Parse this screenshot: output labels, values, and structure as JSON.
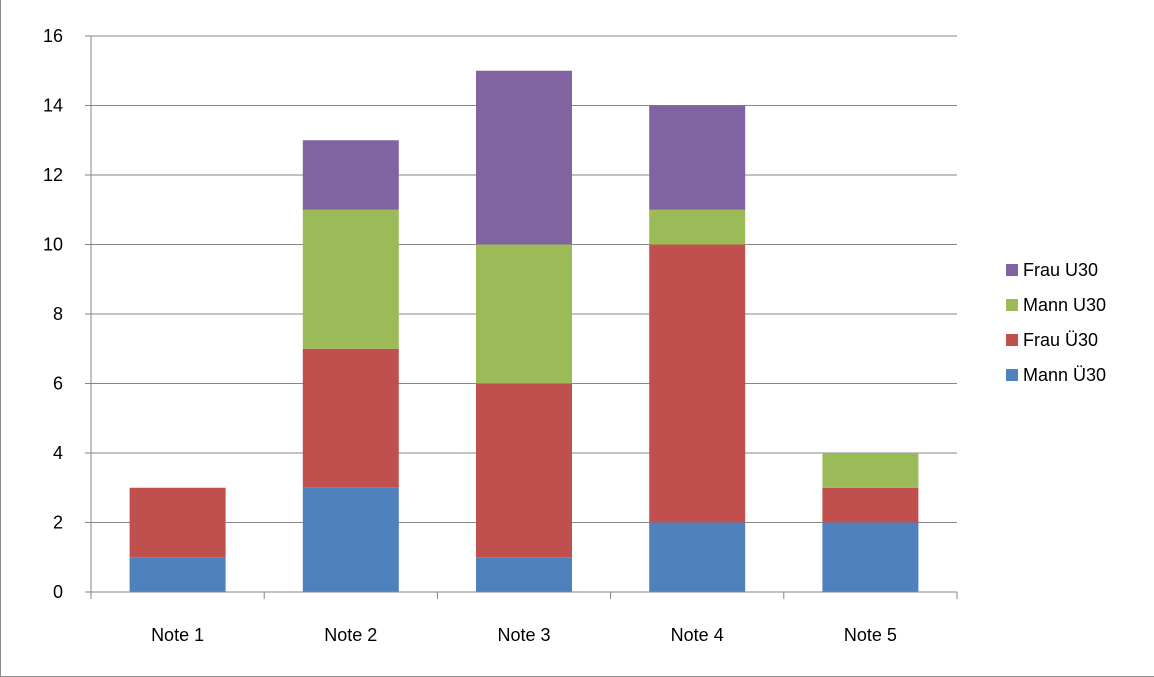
{
  "chart_data": {
    "type": "bar",
    "stacked": true,
    "categories": [
      "Note 1",
      "Note 2",
      "Note 3",
      "Note 4",
      "Note 5"
    ],
    "series": [
      {
        "name": "Mann Ü30",
        "color": "#4f81bd",
        "values": [
          1,
          3,
          1,
          2,
          2
        ]
      },
      {
        "name": "Frau Ü30",
        "color": "#c0504d",
        "values": [
          2,
          4,
          5,
          8,
          1
        ]
      },
      {
        "name": "Mann U30",
        "color": "#9bbb59",
        "values": [
          0,
          4,
          4,
          1,
          1
        ]
      },
      {
        "name": "Frau U30",
        "color": "#8064a2",
        "values": [
          0,
          2,
          5,
          3,
          0
        ]
      }
    ],
    "ylim": [
      0,
      16
    ],
    "yticks": [
      "0",
      "2",
      "4",
      "6",
      "8",
      "10",
      "12",
      "14",
      "16"
    ],
    "grid": true,
    "legend_position": "right"
  }
}
